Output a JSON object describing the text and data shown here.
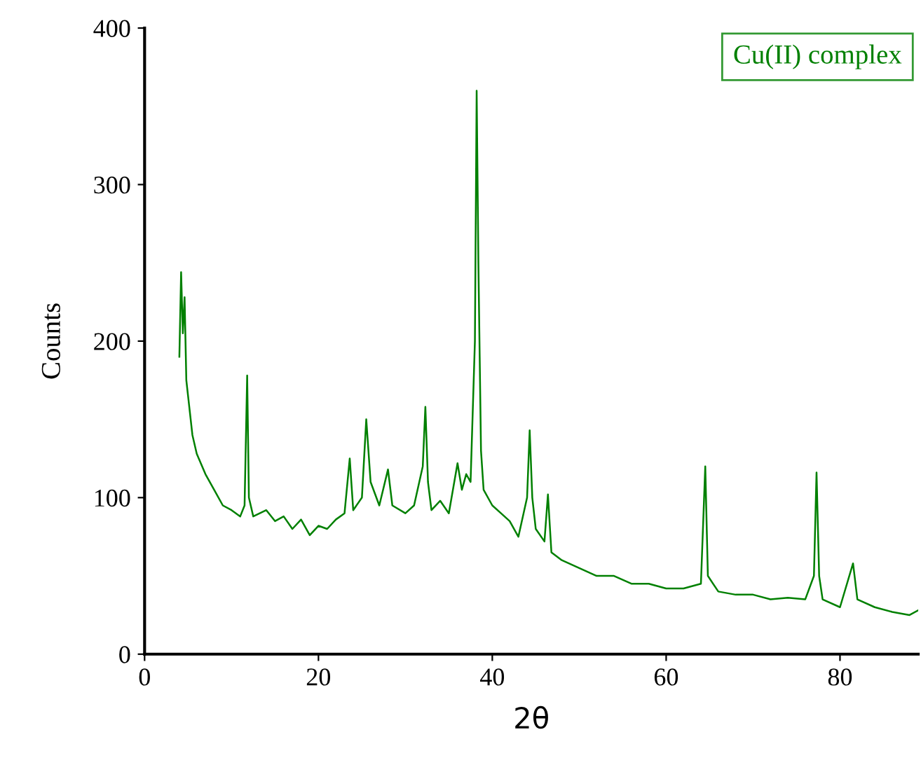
{
  "chart_data": {
    "type": "line",
    "xlabel": "2θ",
    "ylabel": "Counts",
    "xlim": [
      0,
      89
    ],
    "ylim": [
      0,
      400
    ],
    "xticks": [
      0,
      20,
      40,
      60,
      80
    ],
    "yticks": [
      0,
      100,
      200,
      300,
      400
    ],
    "grid": false,
    "legend": "top right",
    "marker": "none",
    "line_style": "solid",
    "series": [
      {
        "name": "Cu(II) complex",
        "color": "#008000",
        "x": [
          4.0,
          4.2,
          4.4,
          4.6,
          4.8,
          5.0,
          5.5,
          6,
          7,
          8,
          9,
          10,
          11,
          11.5,
          11.8,
          12.0,
          12.5,
          14,
          15,
          16,
          17,
          18,
          19,
          20,
          21,
          22,
          23,
          23.6,
          24,
          25,
          25.5,
          26,
          27,
          28,
          28.5,
          30,
          31,
          32,
          32.3,
          32.6,
          33,
          34,
          35,
          36,
          36.5,
          37,
          37.5,
          38.0,
          38.2,
          38.4,
          38.7,
          39,
          40,
          41,
          42,
          43,
          44,
          44.3,
          44.6,
          45,
          46,
          46.4,
          46.8,
          48,
          50,
          52,
          54,
          56,
          58,
          60,
          62,
          64,
          64.5,
          64.8,
          66,
          68,
          70,
          72,
          74,
          76,
          77,
          77.3,
          77.6,
          78,
          80,
          81.5,
          82,
          84,
          86,
          88,
          89
        ],
        "values": [
          190,
          244,
          205,
          228,
          175,
          165,
          140,
          128,
          115,
          105,
          95,
          92,
          88,
          95,
          178,
          100,
          88,
          92,
          85,
          88,
          80,
          86,
          76,
          82,
          80,
          86,
          90,
          125,
          92,
          100,
          150,
          110,
          95,
          118,
          95,
          90,
          95,
          120,
          158,
          110,
          92,
          98,
          90,
          122,
          105,
          115,
          110,
          200,
          360,
          250,
          130,
          105,
          95,
          90,
          85,
          75,
          100,
          143,
          100,
          80,
          72,
          102,
          65,
          60,
          55,
          50,
          50,
          45,
          45,
          42,
          42,
          45,
          120,
          50,
          40,
          38,
          38,
          35,
          36,
          35,
          50,
          116,
          50,
          35,
          30,
          58,
          35,
          30,
          27,
          25,
          28
        ]
      }
    ]
  }
}
